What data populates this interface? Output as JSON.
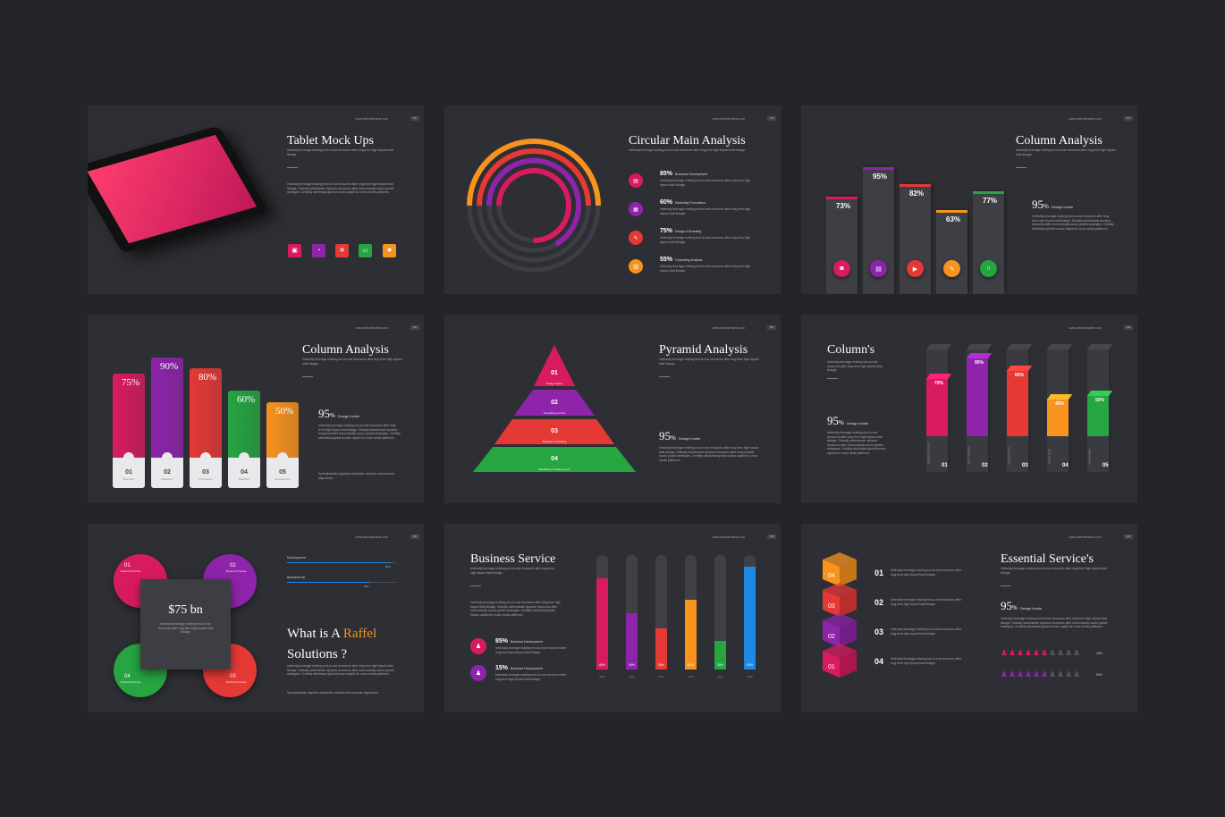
{
  "url": "www.websitename.com",
  "lorem_short": "Intrinsicly leverage existing end-to-end resources after long term high impact total linkage.",
  "lorem_long": "Intrinsicly leverage existing end-to-end resources after long term high impact total linkage. Globally administrate dynamic resources after economically sound growth strategies. Credibly withdrawal global human capital for cross media platforms.",
  "lorem_extra": "Synergistically negotiate worldwide solutions and accurate alignments.",
  "colors": {
    "pink": "#d81b60",
    "purple": "#8e24aa",
    "red": "#e53935",
    "green": "#26a541",
    "orange": "#f7931e",
    "blue": "#1e88e5",
    "bg": "#23252a",
    "card": "#2e2f34"
  },
  "s1": {
    "num": "40",
    "title": "Tablet Mock Ups",
    "icons": [
      "image-icon",
      "pie-chart-icon",
      "gear-icon",
      "folder-icon",
      "settings-icon"
    ]
  },
  "s2": {
    "num": "39",
    "title": "Circular Main Analysis",
    "items": [
      {
        "value": "85%",
        "label": "Business Development",
        "color": "#d81b60",
        "icon": "briefcase-icon"
      },
      {
        "value": "60%",
        "label": "Marketing Promotions",
        "color": "#8e24aa",
        "icon": "calendar-icon"
      },
      {
        "value": "75%",
        "label": "Design & Branding",
        "color": "#e53935",
        "icon": "brush-icon"
      },
      {
        "value": "55%",
        "label": "Consulting Analysis",
        "color": "#f7931e",
        "icon": "chart-icon"
      }
    ]
  },
  "s3": {
    "num": "54",
    "title": "Column Analysis",
    "stat": "95",
    "stat_unit": "%",
    "stat_label": "Design Inside",
    "bars": [
      {
        "value": 73,
        "label": "73%",
        "color": "#d81b60",
        "icon": "camera-icon"
      },
      {
        "value": 95,
        "label": "95%",
        "color": "#8e24aa",
        "icon": "briefcase-icon"
      },
      {
        "value": 82,
        "label": "82%",
        "color": "#e53935",
        "icon": "video-icon"
      },
      {
        "value": 63,
        "label": "63%",
        "color": "#f7931e",
        "icon": "pen-icon"
      },
      {
        "value": 77,
        "label": "77%",
        "color": "#26a541",
        "icon": "headphones-icon"
      }
    ]
  },
  "s4": {
    "num": "50",
    "title": "Column Analysis",
    "stat": "95",
    "stat_unit": "%",
    "stat_label": "Design Inside",
    "bars": [
      {
        "value": 75,
        "label": "75%",
        "num": "01",
        "sub": "Business",
        "color": "#d81b60"
      },
      {
        "value": 90,
        "label": "90%",
        "num": "02",
        "sub": "Marketing",
        "color": "#8e24aa"
      },
      {
        "value": 80,
        "label": "80%",
        "num": "03",
        "sub": "Promotions",
        "color": "#e53935"
      },
      {
        "value": 60,
        "label": "60%",
        "num": "04",
        "sub": "Branding",
        "color": "#26a541"
      },
      {
        "value": 50,
        "label": "50%",
        "num": "05",
        "sub": "Development",
        "color": "#f7931e"
      }
    ]
  },
  "s5": {
    "num": "88",
    "title": "Pyramid Analysis",
    "stat": "95",
    "stat_unit": "%",
    "stat_label": "Design Inside",
    "levels": [
      {
        "num": "01",
        "label": "Design Space",
        "color": "#d81b60"
      },
      {
        "num": "02",
        "label": "Consulting service",
        "color": "#8e24aa"
      },
      {
        "num": "03",
        "label": "Business consulting",
        "color": "#e53935"
      },
      {
        "num": "04",
        "label": "Marketing & strategy work",
        "color": "#26a541"
      }
    ]
  },
  "s6": {
    "num": "88",
    "title": "Column's",
    "stat": "95",
    "stat_unit": "%",
    "stat_label": "Design Inside",
    "bars": [
      {
        "value": 70,
        "label": "70%",
        "num": "01",
        "side": "BUSINESS CLIENTS",
        "color": "#d81b60"
      },
      {
        "value": 95,
        "label": "95%",
        "num": "02",
        "side": "MOST SUPPORT",
        "color": "#8e24aa"
      },
      {
        "value": 80,
        "label": "80%",
        "num": "03",
        "side": "BUSINESS FOR",
        "color": "#e53935"
      },
      {
        "value": 45,
        "label": "45%",
        "num": "04",
        "side": "GRAND PAGE",
        "color": "#f7931e"
      },
      {
        "value": 50,
        "label": "50%",
        "num": "05",
        "side": "BRAND MAKE",
        "color": "#26a541"
      }
    ]
  },
  "s7": {
    "num": "88",
    "value": "$75 bn",
    "title_a": "What is A ",
    "title_hl": "Raffel",
    "title_b": "Solutions ?",
    "circles": [
      {
        "num": "01",
        "label": "Business Promise",
        "color": "#d81b60",
        "icon": "rocket-icon"
      },
      {
        "num": "02",
        "label": "Business Promise",
        "color": "#8e24aa",
        "icon": "graduation-cap-icon"
      },
      {
        "num": "04",
        "label": "Business Promise",
        "color": "#26a541",
        "icon": "layers-icon"
      },
      {
        "num": "03",
        "label": "Business Promise",
        "color": "#e53935",
        "icon": "camera-icon"
      }
    ],
    "progress": [
      {
        "label": "Development",
        "pct": "95%",
        "value": 95
      },
      {
        "label": "Business bar",
        "pct": "75%",
        "value": 75
      }
    ]
  },
  "s8": {
    "num": "88",
    "title": "Business Service",
    "items": [
      {
        "value": "85%",
        "label": "Business Development",
        "color": "#d81b60",
        "icon": "user-icon"
      },
      {
        "value": "15%",
        "label": "Business Development",
        "color": "#8e24aa",
        "icon": "user-icon"
      }
    ],
    "bars": [
      {
        "value": 80,
        "label": "80%",
        "year": "2011",
        "color": "#d81b60"
      },
      {
        "value": 49,
        "label": "49%",
        "year": "2012",
        "color": "#8e24aa"
      },
      {
        "value": 36,
        "label": "36%",
        "year": "2013",
        "color": "#e53935"
      },
      {
        "value": 61,
        "label": "61%",
        "year": "2013",
        "color": "#f7931e"
      },
      {
        "value": 25,
        "label": "25%",
        "year": "2014",
        "color": "#26a541"
      },
      {
        "value": 90,
        "label": "90%",
        "year": "2015",
        "color": "#1e88e5"
      }
    ]
  },
  "s9": {
    "num": "88",
    "title": "Essential Service's",
    "stat": "95",
    "stat_unit": "%",
    "stat_label": "Design Inside",
    "steps": [
      {
        "num": "01",
        "color": "#f7931e",
        "icon": "folder-icon"
      },
      {
        "num": "02",
        "color": "#e53935",
        "icon": "gear-icon"
      },
      {
        "num": "03",
        "color": "#8e24aa",
        "icon": "grid-icon"
      },
      {
        "num": "04",
        "color": "#d81b60",
        "icon": "leaf-icon"
      }
    ],
    "cube_nums": [
      "04",
      "03",
      "02",
      "01"
    ],
    "people": [
      {
        "pct": "40%",
        "filled": 6,
        "color": "#d81b60"
      },
      {
        "pct": "60%",
        "filled": 6,
        "color": "#8e24aa"
      }
    ]
  }
}
